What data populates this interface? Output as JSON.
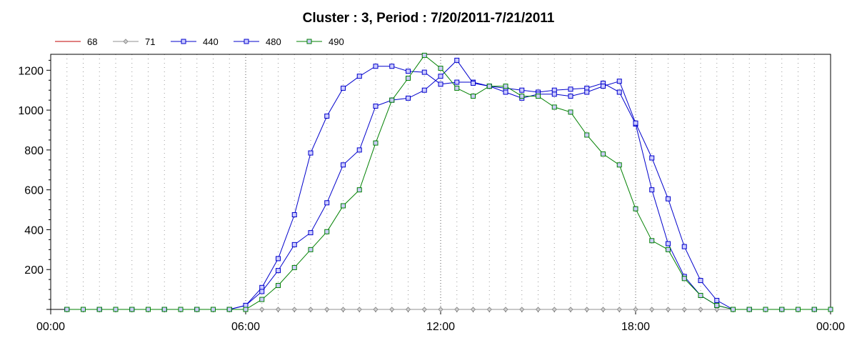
{
  "chart_data": {
    "type": "line",
    "title": "Cluster : 3, Period : 7/20/2011-7/21/2011",
    "xlabel": "",
    "ylabel": "",
    "x_ticks": [
      "00:00",
      "06:00",
      "12:00",
      "18:00",
      "00:00"
    ],
    "y_ticks": [
      "200",
      "400",
      "600",
      "800",
      "1000",
      "1200"
    ],
    "ylim": [
      0,
      1280
    ],
    "xlim_hours": [
      0,
      24
    ],
    "grid": true,
    "legend_position": "top-left",
    "x_hours": [
      0.5,
      1,
      1.5,
      2,
      2.5,
      3,
      3.5,
      4,
      4.5,
      5,
      5.5,
      6,
      6.5,
      7,
      7.5,
      8,
      8.5,
      9,
      9.5,
      10,
      10.5,
      11,
      11.5,
      12,
      12.5,
      13,
      13.5,
      14,
      14.5,
      15,
      15.5,
      16,
      16.5,
      17,
      17.5,
      18,
      18.5,
      19,
      19.5,
      20,
      20.5,
      21,
      21.5,
      22,
      22.5,
      23,
      23.5,
      24
    ],
    "series": [
      {
        "name": "68",
        "color": "#c00000",
        "marker": "none",
        "values": [
          0,
          0,
          0,
          0,
          0,
          0,
          0,
          0,
          0,
          0,
          0,
          0,
          0,
          0,
          0,
          0,
          0,
          0,
          0,
          0,
          0,
          0,
          0,
          0,
          0,
          0,
          0,
          0,
          0,
          0,
          0,
          0,
          0,
          0,
          0,
          0,
          0,
          0,
          0,
          0,
          0,
          0,
          0,
          0,
          0,
          0,
          0,
          0
        ]
      },
      {
        "name": "71",
        "color": "#909090",
        "marker": "diamond",
        "values": [
          0,
          0,
          0,
          0,
          0,
          0,
          0,
          0,
          0,
          0,
          0,
          0,
          0,
          0,
          0,
          0,
          0,
          0,
          0,
          0,
          0,
          0,
          0,
          0,
          0,
          0,
          0,
          0,
          0,
          0,
          0,
          0,
          0,
          0,
          0,
          0,
          0,
          0,
          0,
          0,
          0,
          0,
          0,
          0,
          0,
          0,
          0,
          0
        ]
      },
      {
        "name": "440",
        "color": "#0000cc",
        "marker": "square",
        "values": [
          0,
          0,
          0,
          0,
          0,
          0,
          0,
          0,
          0,
          0,
          0,
          20,
          110,
          255,
          475,
          785,
          970,
          1110,
          1170,
          1220,
          1220,
          1195,
          1190,
          1130,
          1140,
          1140,
          1120,
          1110,
          1100,
          1090,
          1100,
          1105,
          1110,
          1135,
          1090,
          930,
          600,
          330,
          165,
          70,
          20,
          0,
          0,
          0,
          0,
          0,
          0,
          0
        ]
      },
      {
        "name": "480",
        "color": "#0000cc",
        "marker": "square",
        "values": [
          0,
          0,
          0,
          0,
          0,
          0,
          0,
          0,
          0,
          0,
          0,
          20,
          90,
          195,
          325,
          385,
          535,
          725,
          800,
          1020,
          1050,
          1060,
          1100,
          1170,
          1250,
          1135,
          1120,
          1090,
          1060,
          1080,
          1080,
          1070,
          1090,
          1120,
          1145,
          935,
          760,
          555,
          315,
          145,
          45,
          0,
          0,
          0,
          0,
          0,
          0,
          0
        ]
      },
      {
        "name": "490",
        "color": "#008000",
        "marker": "square",
        "values": [
          0,
          0,
          0,
          0,
          0,
          0,
          0,
          0,
          0,
          0,
          0,
          0,
          50,
          120,
          210,
          300,
          390,
          520,
          600,
          835,
          1050,
          1160,
          1275,
          1210,
          1110,
          1070,
          1120,
          1120,
          1070,
          1070,
          1015,
          990,
          875,
          780,
          725,
          505,
          345,
          300,
          155,
          70,
          20,
          0,
          0,
          0,
          0,
          0,
          0,
          0
        ]
      }
    ]
  }
}
